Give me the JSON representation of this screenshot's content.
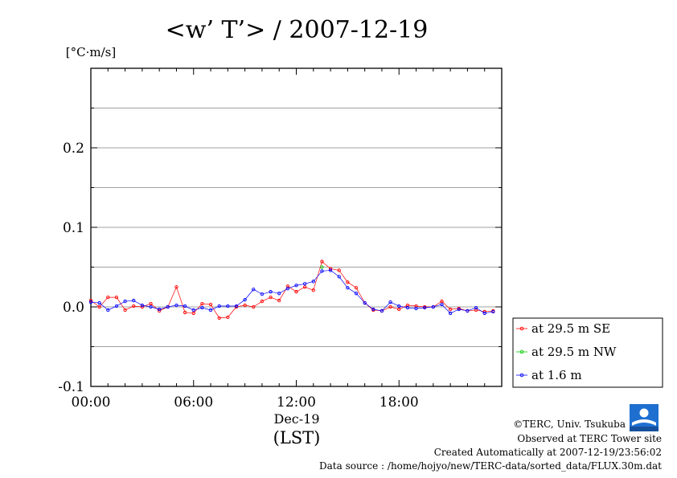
{
  "title": "<w’ T’> / 2007-12-19",
  "unit_label": "[°C·m/s]",
  "date_label": "Dec-19",
  "tz_label": "(LST)",
  "footer": {
    "copyright": "©TERC, Univ. Tsukuba",
    "observed": "Observed at TERC Tower site",
    "created": "Created Automatically at 2007-12-19/23:56:02",
    "source": "Data source : /home/hojyo/new/TERC-data/sorted_data/FLUX.30m.dat"
  },
  "chart_data": {
    "type": "line",
    "title": "<w’ T’> / 2007-12-19",
    "xlabel": "Dec-19 (LST)",
    "ylabel": "[°C·m/s]",
    "xlim": [
      0,
      24
    ],
    "ylim": [
      -0.1,
      0.3
    ],
    "x_ticks": [
      {
        "value": 0,
        "label": "00:00"
      },
      {
        "value": 6,
        "label": "06:00"
      },
      {
        "value": 12,
        "label": "12:00"
      },
      {
        "value": 18,
        "label": "18:00"
      }
    ],
    "y_ticks": [
      {
        "value": -0.1,
        "label": "-0.1"
      },
      {
        "value": 0.0,
        "label": "0.0"
      },
      {
        "value": 0.1,
        "label": "0.1"
      },
      {
        "value": 0.2,
        "label": "0.2"
      }
    ],
    "grid": true,
    "legend_position": "right-outside",
    "series": [
      {
        "name": "at 29.5 m SE",
        "color": "#ff0000",
        "x": [
          0,
          0.5,
          1,
          1.5,
          2,
          2.5,
          3,
          3.5,
          4,
          4.5,
          5,
          5.5,
          6,
          6.5,
          7,
          7.5,
          8,
          8.5,
          9,
          9.5,
          10,
          10.5,
          11,
          11.5,
          12,
          12.5,
          13,
          13.5,
          14,
          14.5,
          15,
          15.5,
          16,
          16.5,
          17,
          17.5,
          18,
          18.5,
          19,
          19.5,
          20,
          20.5,
          21,
          21.5,
          22,
          22.5,
          23,
          23.5
        ],
        "y": [
          0.008,
          0.0,
          0.012,
          0.012,
          -0.004,
          0.001,
          0.0,
          0.004,
          -0.005,
          0.0,
          0.025,
          -0.007,
          -0.008,
          0.004,
          0.003,
          -0.014,
          -0.013,
          0.0,
          0.002,
          0.0,
          0.007,
          0.012,
          0.008,
          0.026,
          0.019,
          0.025,
          0.021,
          0.057,
          0.048,
          0.046,
          0.031,
          0.024,
          0.005,
          -0.004,
          -0.005,
          0.0,
          -0.003,
          0.002,
          0.001,
          0.0,
          0.0,
          0.007,
          -0.003,
          -0.002,
          -0.005,
          -0.004,
          -0.006,
          -0.005
        ]
      },
      {
        "name": "at 29.5 m NW",
        "color": "#00cc00",
        "x": [
          13.5
        ],
        "y": [
          0.05
        ]
      },
      {
        "name": "at 1.6 m",
        "color": "#0000ff",
        "x": [
          0,
          0.5,
          1,
          1.5,
          2,
          2.5,
          3,
          3.5,
          4,
          4.5,
          5,
          5.5,
          6,
          6.5,
          7,
          7.5,
          8,
          8.5,
          9,
          9.5,
          10,
          10.5,
          11,
          11.5,
          12,
          12.5,
          13,
          13.5,
          14,
          14.5,
          15,
          15.5,
          16,
          16.5,
          17,
          17.5,
          18,
          18.5,
          19,
          19.5,
          20,
          20.5,
          21,
          21.5,
          22,
          22.5,
          23,
          23.5
        ],
        "y": [
          0.006,
          0.005,
          -0.004,
          0.001,
          0.007,
          0.008,
          0.002,
          0.0,
          -0.003,
          0.0,
          0.002,
          0.001,
          -0.004,
          -0.001,
          -0.004,
          0.001,
          0.001,
          0.001,
          0.009,
          0.022,
          0.016,
          0.019,
          0.017,
          0.023,
          0.027,
          0.029,
          0.032,
          0.045,
          0.046,
          0.038,
          0.024,
          0.017,
          0.005,
          -0.003,
          -0.005,
          0.006,
          0.001,
          -0.001,
          -0.002,
          -0.001,
          0.0,
          0.003,
          -0.008,
          -0.003,
          -0.005,
          -0.001,
          -0.008,
          -0.006
        ]
      }
    ]
  }
}
